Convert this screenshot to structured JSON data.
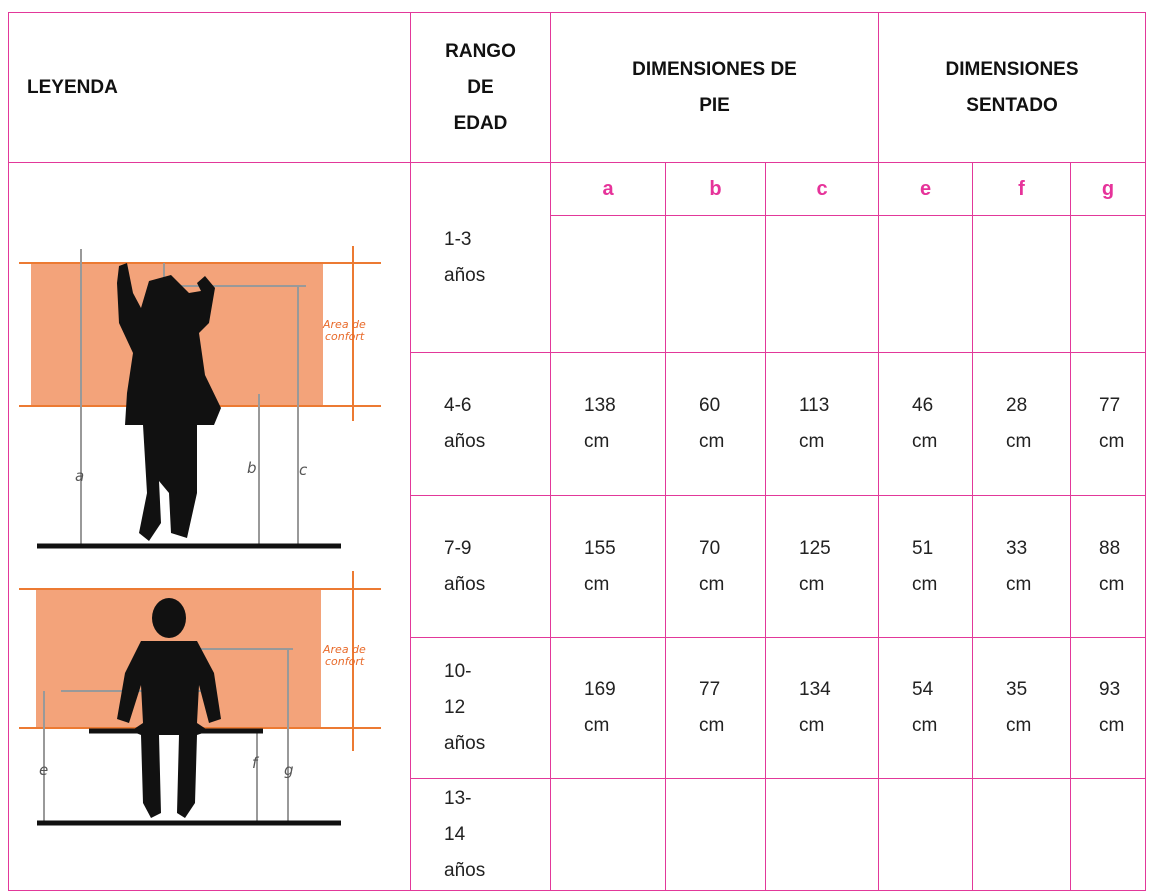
{
  "table": {
    "header": [
      "LEYENDA",
      "RANGO DE EDAD",
      "DIMENSIONES DE PIE",
      "DIMENSIONES SENTADO"
    ],
    "subheader": [
      "a",
      "b",
      "c",
      "e",
      "f",
      "g"
    ],
    "rows": [
      [
        "1-3 años"
      ],
      [
        "4-6 años",
        "138 cm",
        "60 cm",
        "113 cm",
        "46 cm",
        "28 cm",
        "77 cm"
      ],
      [
        "7-9 años",
        "155 cm",
        "70 cm",
        "125 cm",
        "51 cm",
        "33 cm",
        "88 cm"
      ],
      [
        "10-12 años",
        "169 cm",
        "77 cm",
        "134 cm",
        "54 cm",
        "35 cm",
        "93 cm"
      ],
      [
        "13-14 años"
      ]
    ]
  },
  "figure": {
    "top": {
      "labels": [
        "a",
        "b",
        "c"
      ],
      "note": [
        "Area de",
        "confort"
      ]
    },
    "bottom": {
      "labels": [
        "e",
        "f",
        "g"
      ],
      "note": [
        "Area de",
        "confort"
      ]
    }
  }
}
